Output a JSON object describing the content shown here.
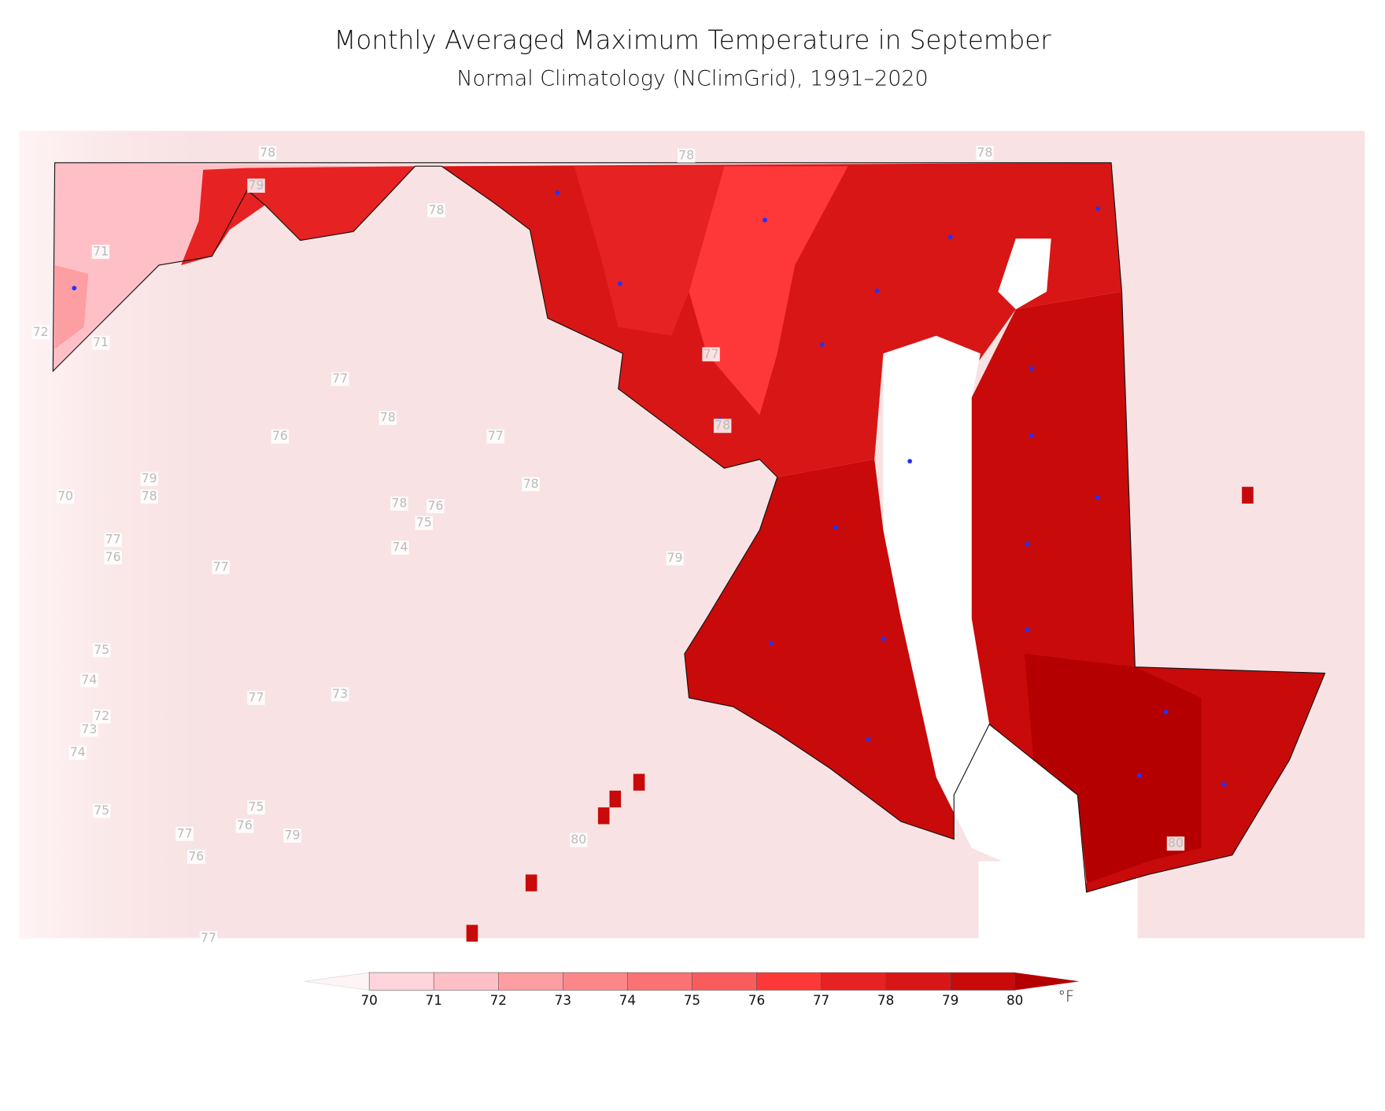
{
  "title": "Monthly Averaged Maximum Temperature in September",
  "subtitle": "Normal Climatology (NClimGrid), 1991–2020",
  "contour_labels": [
    78,
    78,
    78,
    79,
    78,
    71,
    72,
    71,
    77,
    77,
    78,
    78,
    76,
    77,
    79,
    78,
    70,
    78,
    78,
    76,
    75,
    77,
    76,
    74,
    79,
    77,
    75,
    74,
    73,
    77,
    72,
    73,
    74,
    75,
    75,
    76,
    77,
    79,
    80,
    76,
    80,
    77
  ],
  "colorbar": {
    "ticks": [
      70,
      71,
      72,
      73,
      74,
      75,
      76,
      77,
      78,
      79,
      80
    ],
    "under_color": "#fff4f5",
    "colors": [
      "#ffd4da",
      "#fec0c6",
      "#fd9ea2",
      "#fc8789",
      "#fb7274",
      "#fa5c5e",
      "#fe3838",
      "#e72222",
      "#d81616",
      "#c80a0a"
    ],
    "over_color": "#b40000",
    "unit": "°F"
  },
  "background_color": "#f8e2e3"
}
